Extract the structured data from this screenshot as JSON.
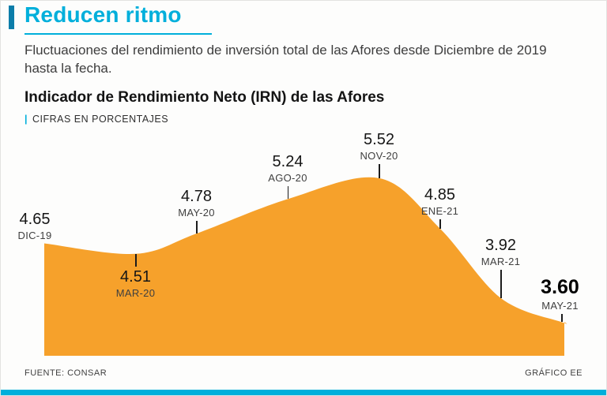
{
  "header": {
    "title": "Reducen ritmo",
    "description": "Fluctuaciones del rendimiento de inversión total de las Afores desde Diciembre de 2019 hasta la fecha."
  },
  "chart_header": {
    "title": "Indicador de Rendimiento Neto (IRN) de las Afores",
    "units_prefix": "|",
    "units": "CIFRAS EN PORCENTAJES"
  },
  "footer": {
    "source": "FUENTE: CONSAR",
    "credit": "GRÁFICO EE"
  },
  "colors": {
    "accent_cyan": "#00afdb",
    "accent_dark": "#0c7da9",
    "area_orange": "#f6a12b"
  },
  "chart_data": {
    "type": "area",
    "title": "Indicador de Rendimiento Neto (IRN) de las Afores",
    "ylabel": "CIFRAS EN PORCENTAJES",
    "categories": [
      "DIC-19",
      "MAR-20",
      "MAY-20",
      "AGO-20",
      "NOV-20",
      "ENE-21",
      "MAR-21",
      "MAY-21"
    ],
    "values": [
      4.65,
      4.51,
      4.78,
      5.24,
      5.52,
      4.85,
      3.92,
      3.6
    ],
    "month_offsets": [
      0,
      3,
      5,
      8,
      11,
      13,
      15,
      17
    ],
    "ylim": [
      3.15,
      5.6
    ],
    "area_color": "#f6a12b",
    "grid": false,
    "legend": false,
    "label_side": [
      "above",
      "below",
      "above",
      "above",
      "above",
      "above",
      "above",
      "above"
    ],
    "tick_len": [
      0,
      16,
      16,
      16,
      18,
      12,
      36,
      10
    ],
    "label_dx": [
      -12,
      0,
      0,
      0,
      0,
      0,
      0,
      -2
    ],
    "emphasized_index": 7
  }
}
